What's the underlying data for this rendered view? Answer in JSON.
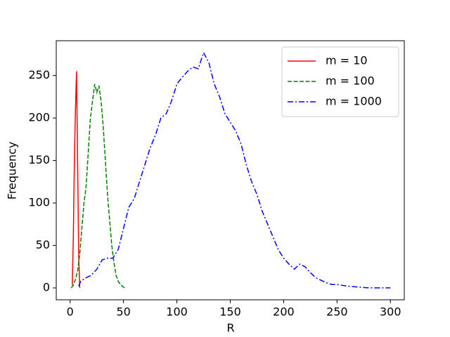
{
  "chart_data": {
    "type": "line",
    "xlabel": "R",
    "ylabel": "Frequency",
    "xlim": [
      -13,
      313
    ],
    "ylim": [
      -14,
      291
    ],
    "xticks": [
      0,
      50,
      100,
      150,
      200,
      250,
      300
    ],
    "yticks": [
      0,
      50,
      100,
      150,
      200,
      250
    ],
    "legend": "upper right",
    "series": [
      {
        "name": "m = 10",
        "color": "#ff0000",
        "style": "solid",
        "x": [
          2,
          3,
          4,
          5,
          6,
          7,
          8,
          9
        ],
        "values": [
          3,
          60,
          150,
          210,
          255,
          150,
          40,
          0
        ]
      },
      {
        "name": "m = 100",
        "color": "#008000",
        "style": "dashed",
        "x": [
          1,
          3,
          5,
          7,
          9,
          11,
          13,
          15,
          17,
          19,
          21,
          23,
          25,
          27,
          29,
          31,
          33,
          35,
          37,
          39,
          41,
          43,
          45,
          47,
          49,
          51
        ],
        "values": [
          0,
          3,
          10,
          20,
          40,
          70,
          100,
          120,
          160,
          200,
          220,
          240,
          230,
          238,
          220,
          190,
          150,
          110,
          80,
          50,
          30,
          15,
          8,
          4,
          2,
          0
        ]
      },
      {
        "name": "m = 1000",
        "color": "#0000ff",
        "style": "dashdot",
        "x": [
          8,
          10,
          15,
          20,
          25,
          30,
          35,
          40,
          45,
          50,
          55,
          60,
          65,
          70,
          75,
          80,
          85,
          90,
          95,
          100,
          105,
          110,
          115,
          120,
          125,
          130,
          135,
          140,
          145,
          150,
          155,
          160,
          165,
          170,
          175,
          180,
          185,
          190,
          195,
          200,
          205,
          210,
          215,
          220,
          225,
          230,
          235,
          240,
          245,
          250,
          255,
          260,
          270,
          280,
          290,
          300
        ],
        "values": [
          2,
          8,
          12,
          15,
          22,
          33,
          35,
          35,
          45,
          70,
          95,
          105,
          125,
          145,
          165,
          180,
          200,
          205,
          220,
          240,
          248,
          255,
          260,
          258,
          277,
          265,
          240,
          225,
          205,
          195,
          185,
          170,
          145,
          125,
          110,
          90,
          75,
          60,
          45,
          35,
          28,
          22,
          28,
          25,
          18,
          12,
          9,
          6,
          4,
          4,
          3,
          2,
          1,
          0,
          0,
          0
        ]
      }
    ]
  }
}
